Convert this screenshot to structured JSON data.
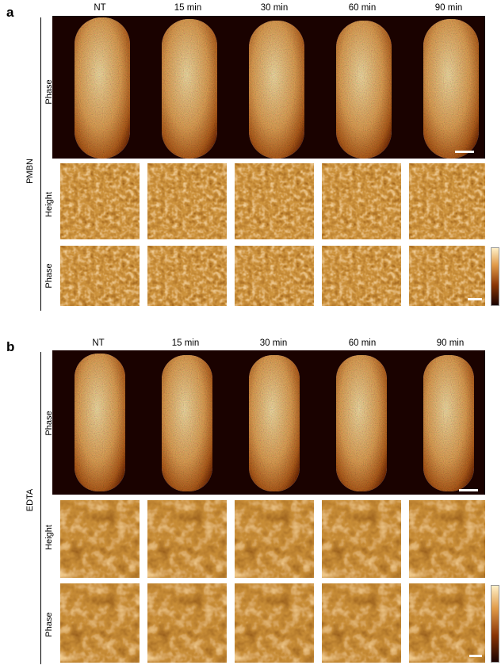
{
  "colors": {
    "dark": "#1a0200",
    "mid": "#8a3505",
    "bright": "#f7cf80",
    "highlight": "#fff0c8"
  },
  "panels": [
    {
      "letter": "a",
      "group": "PMBN",
      "columns": [
        "NT",
        "15 min",
        "30 min",
        "60 min",
        "90 min"
      ],
      "rows": [
        "Phase",
        "Height",
        "Phase"
      ]
    },
    {
      "letter": "b",
      "group": "EDTA",
      "columns": [
        "NT",
        "15 min",
        "30 min",
        "60 min",
        "90 min"
      ],
      "rows": [
        "Phase",
        "Height",
        "Phase"
      ]
    }
  ]
}
